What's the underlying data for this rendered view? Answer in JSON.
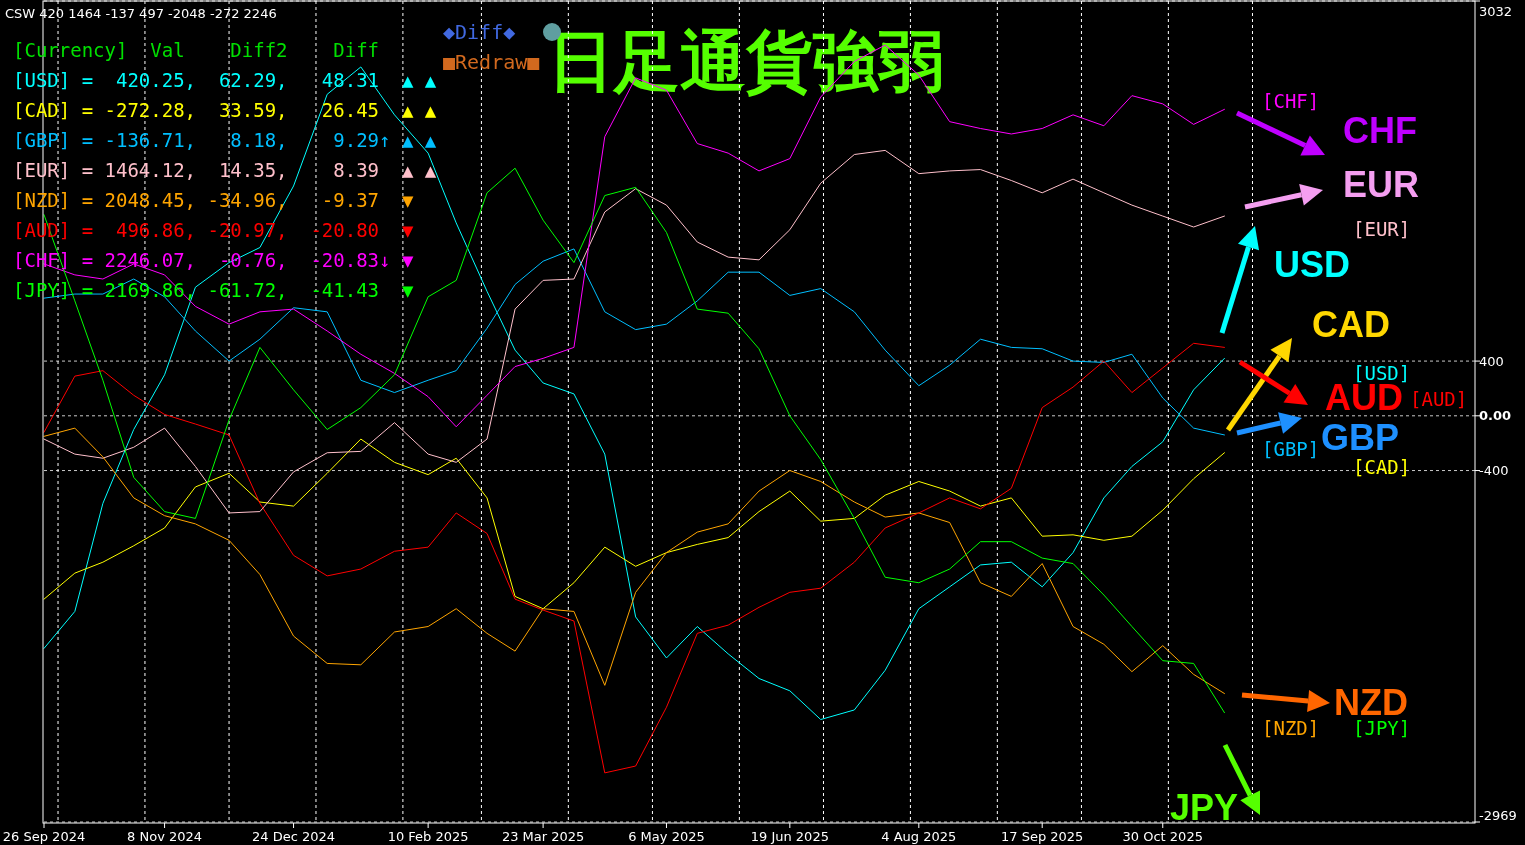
{
  "chart_data": {
    "type": "line",
    "title": "日足通貨強弱",
    "x": [
      "2024-09-26",
      "2024-10-07",
      "2024-10-17",
      "2024-10-28",
      "2024-11-08",
      "2024-11-19",
      "2024-12-01",
      "2024-12-12",
      "2024-12-24",
      "2025-01-05",
      "2025-01-17",
      "2025-01-29",
      "2025-02-10",
      "2025-02-20",
      "2025-03-03",
      "2025-03-13",
      "2025-03-23",
      "2025-04-03",
      "2025-04-14",
      "2025-04-25",
      "2025-05-06",
      "2025-05-17",
      "2025-05-28",
      "2025-06-08",
      "2025-06-19",
      "2025-06-30",
      "2025-07-12",
      "2025-07-23",
      "2025-08-04",
      "2025-08-15",
      "2025-08-26",
      "2025-09-06",
      "2025-09-17",
      "2025-09-28",
      "2025-10-09",
      "2025-10-19",
      "2025-10-30",
      "2025-11-10",
      "2025-11-21"
    ],
    "xlim": [
      "2024-09-26",
      "2026-02-18"
    ],
    "xticks": [
      {
        "value": "2024-09-26",
        "label": "26 Sep 2024"
      },
      {
        "value": "2024-11-08",
        "label": "8 Nov 2024"
      },
      {
        "value": "2024-12-24",
        "label": "24 Dec 2024"
      },
      {
        "value": "2025-02-10",
        "label": "10 Feb 2025"
      },
      {
        "value": "2025-03-23",
        "label": "23 Mar 2025"
      },
      {
        "value": "2025-05-06",
        "label": "6 May 2025"
      },
      {
        "value": "2025-06-19",
        "label": "19 Jun 2025"
      },
      {
        "value": "2025-08-04",
        "label": "4 Aug 2025"
      },
      {
        "value": "2025-09-17",
        "label": "17 Sep 2025"
      },
      {
        "value": "2025-10-30",
        "label": "30 Oct 2025"
      }
    ],
    "ylim": [
      -2969,
      3032
    ],
    "yticks": [
      -2969,
      -400,
      {
        "value": 0,
        "label": "0.00"
      },
      400,
      3032
    ],
    "grid": "y",
    "legend": false,
    "marker": "none",
    "line_style": "solid",
    "series": [
      {
        "name": "[USD]",
        "color": "#00ffff",
        "values": [
          -1700,
          -1430,
          -640,
          -100,
          300,
          940,
          1120,
          1230,
          1680,
          2350,
          2550,
          2200,
          1920,
          1410,
          910,
          480,
          240,
          160,
          -280,
          -1470,
          -1770,
          -1540,
          -1740,
          -1920,
          -2010,
          -2220,
          -2150,
          -1860,
          -1410,
          -1250,
          -1090,
          -1070,
          -1250,
          -1000,
          -600,
          -370,
          -190,
          190,
          420
        ]
      },
      {
        "name": "[CAD]",
        "color": "#ffff00",
        "values": [
          -1340,
          -1150,
          -1070,
          -950,
          -820,
          -520,
          -420,
          -630,
          -660,
          -420,
          -170,
          -340,
          -430,
          -310,
          -600,
          -1320,
          -1410,
          -1220,
          -960,
          -1100,
          -1000,
          -940,
          -890,
          -700,
          -550,
          -770,
          -750,
          -580,
          -480,
          -550,
          -660,
          -600,
          -880,
          -870,
          -910,
          -880,
          -690,
          -460,
          -270
        ]
      },
      {
        "name": "[GBP]",
        "color": "#00bfff",
        "values": [
          860,
          890,
          890,
          1000,
          870,
          620,
          400,
          560,
          790,
          760,
          260,
          170,
          260,
          330,
          640,
          960,
          1130,
          1220,
          760,
          630,
          670,
          840,
          1050,
          1050,
          880,
          930,
          760,
          480,
          220,
          370,
          560,
          500,
          490,
          400,
          390,
          450,
          130,
          -90,
          -140
        ]
      },
      {
        "name": "[EUR]",
        "color": "#ffc0cb",
        "values": [
          -170,
          -280,
          -310,
          -230,
          -90,
          -370,
          -710,
          -700,
          -410,
          -270,
          -260,
          -50,
          -280,
          -340,
          -170,
          780,
          990,
          1000,
          1490,
          1660,
          1540,
          1270,
          1160,
          1140,
          1360,
          1700,
          1910,
          1940,
          1770,
          1790,
          1800,
          1720,
          1630,
          1730,
          1630,
          1540,
          1460,
          1380,
          1460
        ]
      },
      {
        "name": "[NZD]",
        "color": "#ffa500",
        "values": [
          -150,
          -90,
          -300,
          -600,
          -730,
          -790,
          -910,
          -1160,
          -1610,
          -1810,
          -1820,
          -1580,
          -1540,
          -1410,
          -1590,
          -1720,
          -1410,
          -1430,
          -1970,
          -1290,
          -1000,
          -850,
          -790,
          -550,
          -400,
          -480,
          -630,
          -740,
          -710,
          -780,
          -1220,
          -1320,
          -1080,
          -1540,
          -1670,
          -1870,
          -1680,
          -1890,
          -2030
        ]
      },
      {
        "name": "[AUD]",
        "color": "#ff0000",
        "values": [
          -120,
          290,
          330,
          150,
          10,
          -60,
          -140,
          -640,
          -1020,
          -1170,
          -1120,
          -990,
          -960,
          -710,
          -860,
          -1340,
          -1420,
          -1500,
          -2610,
          -2560,
          -2130,
          -1590,
          -1530,
          -1400,
          -1290,
          -1260,
          -1070,
          -820,
          -710,
          -600,
          -680,
          -530,
          60,
          210,
          400,
          170,
          350,
          530,
          500
        ]
      },
      {
        "name": "[CHF]",
        "color": "#ff00ff",
        "values": [
          1110,
          1030,
          1000,
          1110,
          1030,
          800,
          670,
          760,
          780,
          620,
          450,
          310,
          140,
          -80,
          150,
          360,
          420,
          500,
          2040,
          2470,
          2380,
          1990,
          1920,
          1790,
          1880,
          2330,
          2590,
          2710,
          2490,
          2150,
          2100,
          2060,
          2100,
          2200,
          2120,
          2340,
          2280,
          2130,
          2240
        ]
      },
      {
        "name": "[JPY]",
        "color": "#00ff00",
        "values": [
          1470,
          840,
          260,
          -450,
          -700,
          -750,
          -30,
          500,
          190,
          -100,
          60,
          300,
          870,
          990,
          1630,
          1810,
          1430,
          1120,
          1610,
          1670,
          1340,
          780,
          750,
          490,
          0,
          -320,
          -750,
          -1180,
          -1220,
          -1120,
          -920,
          -920,
          -1040,
          -1080,
          -1310,
          -1540,
          -1790,
          -1810,
          -2170
        ]
      }
    ],
    "ref_lines": [
      {
        "axis": "x",
        "value": "2024-10-01",
        "color": "#ffffff",
        "line_style": "dashed"
      },
      {
        "axis": "x",
        "value": "2024-11-01",
        "color": "#ffffff",
        "line_style": "dashed"
      },
      {
        "axis": "x",
        "value": "2024-12-01",
        "color": "#ffffff",
        "line_style": "dashed"
      },
      {
        "axis": "x",
        "value": "2025-01-01",
        "color": "#ffffff",
        "line_style": "dashed"
      },
      {
        "axis": "x",
        "value": "2025-02-01",
        "color": "#ffffff",
        "line_style": "dashed"
      },
      {
        "axis": "x",
        "value": "2025-03-01",
        "color": "#ffffff",
        "line_style": "dashed"
      },
      {
        "axis": "x",
        "value": "2025-04-01",
        "color": "#ffffff",
        "line_style": "dashed"
      },
      {
        "axis": "x",
        "value": "2025-05-01",
        "color": "#ffffff",
        "line_style": "dashed"
      },
      {
        "axis": "x",
        "value": "2025-06-01",
        "color": "#ffffff",
        "line_style": "dashed"
      },
      {
        "axis": "x",
        "value": "2025-07-01",
        "color": "#ffffff",
        "line_style": "dashed"
      },
      {
        "axis": "x",
        "value": "2025-08-01",
        "color": "#ffffff",
        "line_style": "dashed"
      },
      {
        "axis": "x",
        "value": "2025-09-01",
        "color": "#ffffff",
        "line_style": "dashed"
      },
      {
        "axis": "x",
        "value": "2025-10-01",
        "color": "#ffffff",
        "line_style": "dashed"
      },
      {
        "axis": "x",
        "value": "2025-11-01",
        "color": "#ffffff",
        "line_style": "dashed"
      },
      {
        "axis": "x",
        "value": "2025-12-01",
        "color": "#ffffff",
        "line_style": "dashed"
      }
    ],
    "annotations": [
      "CSW 420 1464 -137 497 -2048 -272 2246",
      "[Currency]  Val    Diff2    Diff",
      "[USD] =  420.25,  62.29,   48.31  ▲ ▲",
      "[CAD] = -272.28,  33.59,   26.45  ▲ ▲",
      "[GBP] = -136.71,   8.18,    9.29↑ ▲ ▲",
      "[EUR] = 1464.12,  14.35,    8.39  ▲ ▲",
      "[NZD] = 2048.45, -34.96,   -9.37  ▼",
      "[AUD] =  496.86, -20.97,  -20.80  ▼",
      "[CHF] = 2246.07,  -0.76,  -20.83↓ ▼",
      "[JPY] = 2169.86, -61.72,  -41.43  ▼",
      "◆Diff◆",
      "■Redraw■",
      "CHF",
      "EUR",
      "USD",
      "CAD",
      "AUD",
      "GBP",
      "NZD",
      "JPY"
    ]
  }
}
